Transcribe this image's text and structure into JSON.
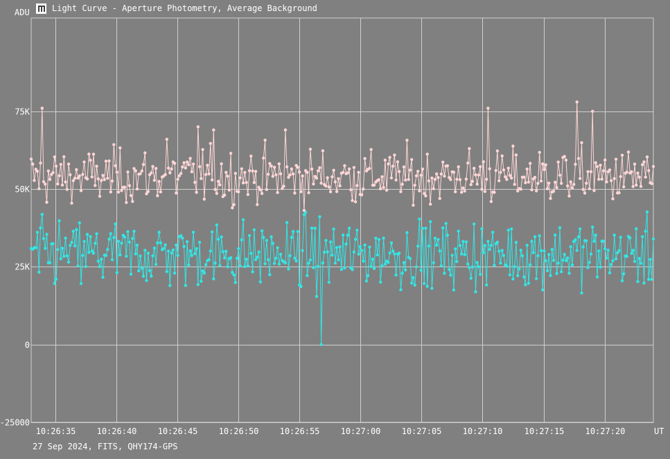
{
  "window": {
    "title": "Light Curve - Aperture Photometry, Average Background",
    "footer": "27 Sep 2024, FITS, QHY174-GPS"
  },
  "chart_data": {
    "type": "line",
    "ylabel": "ADU",
    "xunit": "UT",
    "ylim": [
      -25000,
      105000
    ],
    "yticks": [
      -25000,
      0,
      25000,
      50000,
      75000
    ],
    "ytick_labels": [
      "-25000",
      "0",
      "25K",
      "50K",
      "75K"
    ],
    "x_start": "10:26:33",
    "x_end": "10:27:24",
    "xticks": [
      "10:26:35",
      "10:26:40",
      "10:26:45",
      "10:26:50",
      "10:26:55",
      "10:27:00",
      "10:27:05",
      "10:27:10",
      "10:27:15",
      "10:27:20"
    ],
    "grid": true,
    "series": [
      {
        "color": "#ffd6d6",
        "mean": 54000,
        "spikes": [
          [
            0,
            76000
          ],
          [
            0,
            66000
          ],
          [
            0,
            70000
          ],
          [
            0,
            69000
          ],
          [
            0,
            69000
          ],
          [
            0,
            76000
          ],
          [
            0,
            78000
          ],
          [
            0,
            75000
          ]
        ]
      },
      {
        "color": "#33e6e6",
        "mean": 29000,
        "minimum": 0
      }
    ]
  },
  "colors": {
    "background": "#808080",
    "grid": "#cfcfcf",
    "series1": "#ffd6d6",
    "series2": "#33e6e6"
  }
}
